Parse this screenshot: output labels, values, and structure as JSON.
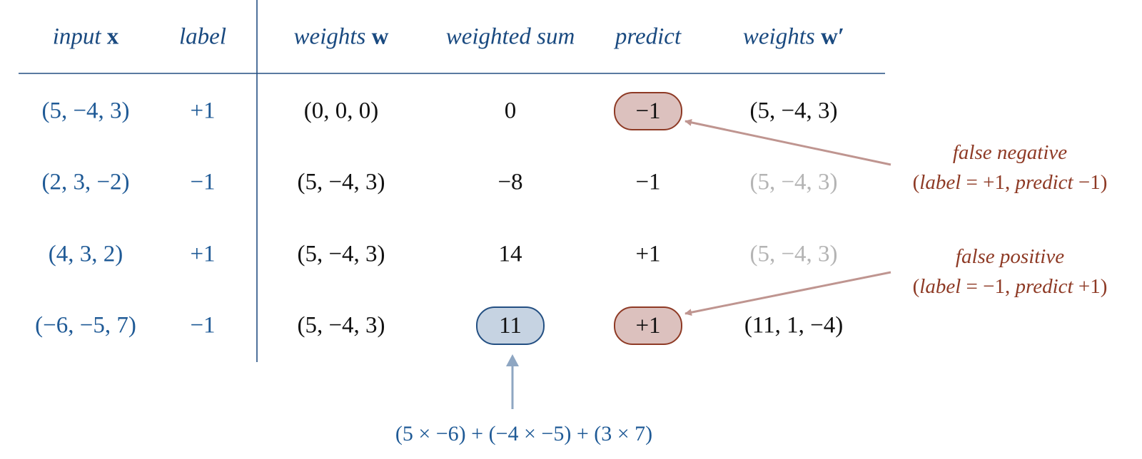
{
  "headers": {
    "input_word": "input",
    "input_sym": "x",
    "label": "label",
    "weights_word": "weights",
    "weights_sym": "w",
    "weighted_sum": "weighted sum",
    "predict": "predict",
    "weights_new_word": "weights",
    "weights_new_sym": "w′"
  },
  "rows": [
    {
      "input": "(5, −4, 3)",
      "label": "+1",
      "weights": "(0, 0, 0)",
      "sum": "0",
      "predict": "−1",
      "new_weights": "(5, −4, 3)"
    },
    {
      "input": "(2, 3, −2)",
      "label": "−1",
      "weights": "(5, −4, 3)",
      "sum": "−8",
      "predict": "−1",
      "new_weights": "(5, −4, 3)"
    },
    {
      "input": "(4, 3, 2)",
      "label": "+1",
      "weights": "(5, −4, 3)",
      "sum": "14",
      "predict": "+1",
      "new_weights": "(5, −4, 3)"
    },
    {
      "input": "(−6, −5, 7)",
      "label": "−1",
      "weights": "(5, −4, 3)",
      "sum": "11",
      "predict": "+1",
      "new_weights": "(11, 1, −4)"
    }
  ],
  "annotations": {
    "false_negative": {
      "title": "false negative",
      "open": "(",
      "label_word": "label",
      "eq": " = +1, ",
      "predict_word": "predict",
      "val": " −1)"
    },
    "false_positive": {
      "title": "false positive",
      "open": "(",
      "label_word": "label",
      "eq": " = −1, ",
      "predict_word": "predict",
      "val": " +1)"
    },
    "computation": "(5 × −6) + (−4 × −5) + (3 × 7)"
  },
  "colors": {
    "input_blue": "#1f5a96",
    "error_red": "#8e3a25",
    "unchanged_gray": "#b4b4b4",
    "rule": "#234f82"
  }
}
